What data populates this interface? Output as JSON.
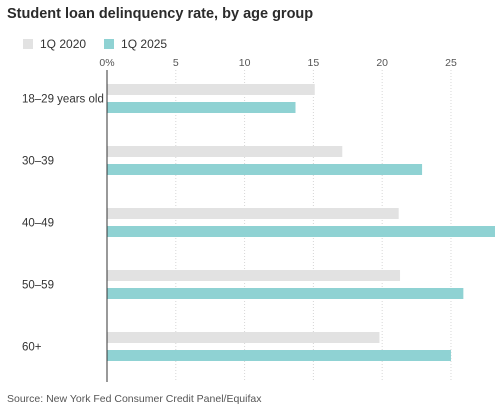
{
  "chart_data": {
    "type": "bar",
    "orientation": "horizontal",
    "title": "Student loan delinquency rate, by age group",
    "categories": [
      "18–29 years old",
      "30–39",
      "40–49",
      "50–59",
      "60+"
    ],
    "series": [
      {
        "name": "1Q 2020",
        "color": "#e2e2e2",
        "values": [
          15.1,
          17.1,
          21.2,
          21.3,
          19.8
        ]
      },
      {
        "name": "1Q 2025",
        "color": "#8fd2d3",
        "values": [
          13.7,
          22.9,
          28.2,
          25.9,
          25.0
        ]
      }
    ],
    "xlim": [
      0,
      28.2
    ],
    "xticks": [
      0,
      5,
      10,
      15,
      20,
      25
    ],
    "xtick_labels": [
      "0%",
      "5",
      "10",
      "15",
      "20",
      "25"
    ],
    "grid": true,
    "legend_position": "top-left",
    "source": "Source: New York Fed Consumer Credit Panel/Equifax"
  }
}
